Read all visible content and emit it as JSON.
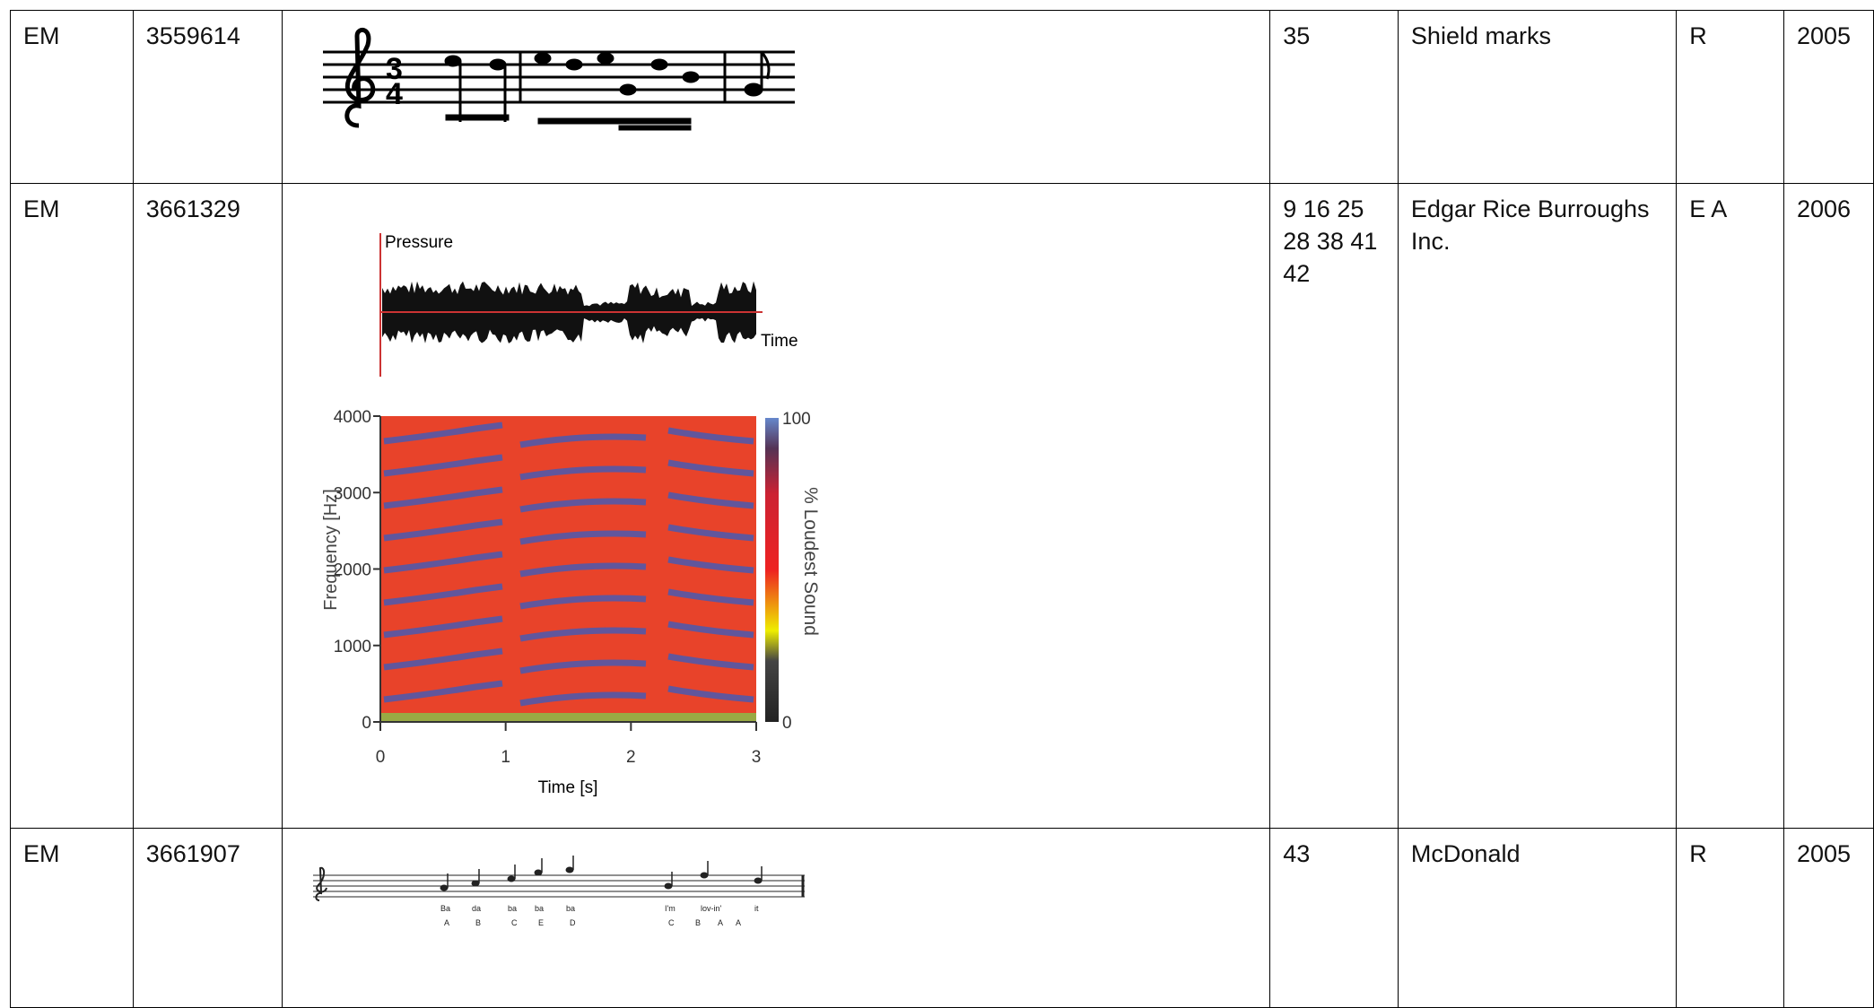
{
  "table": {
    "rows": [
      [
        "EM",
        "3559614",
        "35",
        "Shield marks",
        "R",
        "2005"
      ],
      [
        "EM",
        "3661329",
        "9 16 25 28 38 41 42",
        "Edgar Rice Burroughs Inc.",
        "E A",
        "2006"
      ],
      [
        "EM",
        "3661907",
        "43",
        "McDonald",
        "R",
        "2005"
      ]
    ]
  },
  "spectrogram": {
    "pressure_label": "Pressure",
    "time_label": "Time",
    "y_label": "Frequency [Hz]",
    "x_label": "Time [s]",
    "colorbar_label": "% Loudest Sound",
    "yticks": [
      0,
      1000,
      2000,
      3000,
      4000
    ],
    "xticks": [
      0,
      1,
      2,
      3
    ],
    "colorbar_ticks": [
      0,
      100
    ]
  },
  "jingle": {
    "lyrics": [
      "Ba",
      "da",
      "ba",
      "ba",
      "ba",
      "I'm",
      "lov-in'",
      "it"
    ],
    "notes": [
      "A",
      "B",
      "C",
      "E",
      "D",
      "C",
      "B",
      "A",
      "A"
    ]
  }
}
